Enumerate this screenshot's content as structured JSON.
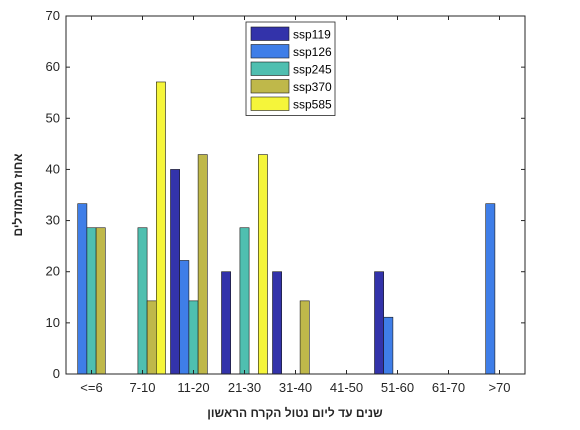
{
  "chart_data": {
    "type": "bar",
    "title": "",
    "xlabel": "שנים עד ליום נטול הקרח הראשון",
    "ylabel": "אחוז מהמודלים",
    "ylim": [
      0,
      70
    ],
    "yticks": [
      0,
      10,
      20,
      30,
      40,
      50,
      60,
      70
    ],
    "grid": false,
    "legend_position": "top-center",
    "categories": [
      "<=6",
      "7-10",
      "11-20",
      "21-30",
      "31-40",
      "41-50",
      "51-60",
      "61-70",
      ">70"
    ],
    "series": [
      {
        "name": "ssp119",
        "color": "#3333aa",
        "values": [
          0,
          0,
          40,
          20,
          20,
          0,
          20,
          0,
          0
        ]
      },
      {
        "name": "ssp126",
        "color": "#3f7ee8",
        "values": [
          33.3,
          0,
          22.2,
          0,
          0,
          0,
          11.1,
          0,
          33.3
        ]
      },
      {
        "name": "ssp245",
        "color": "#4fbfb0",
        "values": [
          28.6,
          28.6,
          14.3,
          28.6,
          0,
          0,
          0,
          0,
          0
        ]
      },
      {
        "name": "ssp370",
        "color": "#bfb84a",
        "values": [
          28.6,
          14.3,
          42.9,
          0,
          14.3,
          0,
          0,
          0,
          0
        ]
      },
      {
        "name": "ssp585",
        "color": "#f5f53a",
        "values": [
          0,
          57.1,
          0,
          42.9,
          0,
          0,
          0,
          0,
          0
        ]
      }
    ]
  }
}
